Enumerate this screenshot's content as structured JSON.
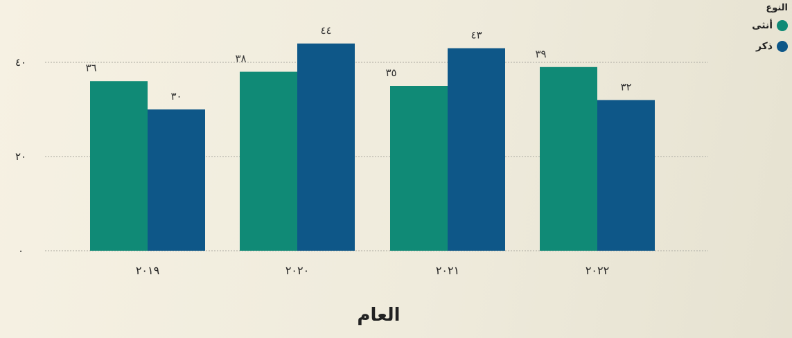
{
  "chart_data": {
    "type": "bar",
    "categories": [
      "٢٠١٩",
      "٢٠٢٠",
      "٢٠٢١",
      "٢٠٢٢"
    ],
    "series": [
      {
        "name": "أنثى",
        "values": [
          36,
          38,
          35,
          39
        ],
        "labels": [
          "٣٦",
          "٣٨",
          "٣٥",
          "٣٩"
        ],
        "color": "#108a76"
      },
      {
        "name": "ذكر",
        "values": [
          30,
          44,
          43,
          32
        ],
        "labels": [
          "٣٠",
          "٤٤",
          "٤٣",
          "٣٢"
        ],
        "color": "#0e5788"
      }
    ],
    "yticks": [
      0,
      20,
      40
    ],
    "ytick_labels": [
      "٠",
      "٢٠",
      "٤٠"
    ],
    "ylim": [
      0,
      45
    ],
    "xlabel": "العام",
    "legend_title": "النوع",
    "grid": true,
    "legend_position": "top-right"
  }
}
